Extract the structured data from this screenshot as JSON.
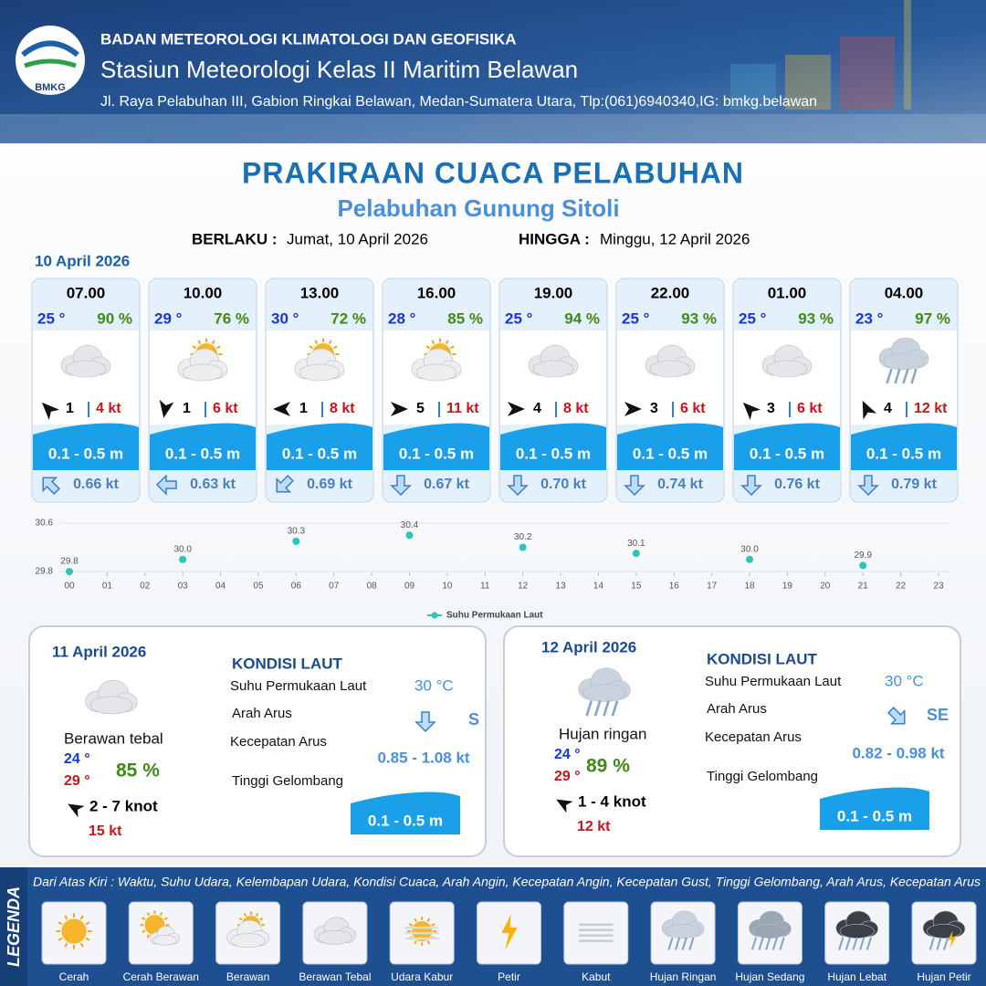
{
  "header": {
    "logo": "BMKG",
    "org": "BADAN METEOROLOGI KLIMATOLOGI DAN GEOFISIKA",
    "station": "Stasiun Meteorologi Kelas II Maritim Belawan",
    "address": "Jl. Raya Pelabuhan III, Gabion Ringkai Belawan, Medan-Sumatera Utara, Tlp:(061)6940340,IG: bmkg.belawan"
  },
  "title": "PRAKIRAAN CUACA PELABUHAN",
  "subtitle": "Pelabuhan Gunung Sitoli",
  "validity": {
    "from_label": "BERLAKU :",
    "from": "Jumat, 10 April 2026",
    "to_label": "HINGGA :",
    "to": "Minggu, 12 April 2026"
  },
  "forecast": {
    "date": "10 April 2026",
    "slots": [
      {
        "time": "07.00",
        "temp": "25 °",
        "humidity": "90 %",
        "wind": "1",
        "gust": "4 kt",
        "wave": "0.1 - 0.5 m",
        "current": "0.66 kt"
      },
      {
        "time": "10.00",
        "temp": "29 °",
        "humidity": "76 %",
        "wind": "1",
        "gust": "6 kt",
        "wave": "0.1 - 0.5 m",
        "current": "0.63 kt"
      },
      {
        "time": "13.00",
        "temp": "30 °",
        "humidity": "72 %",
        "wind": "1",
        "gust": "8 kt",
        "wave": "0.1 - 0.5 m",
        "current": "0.69 kt"
      },
      {
        "time": "16.00",
        "temp": "28 °",
        "humidity": "85 %",
        "wind": "5",
        "gust": "11 kt",
        "wave": "0.1 - 0.5 m",
        "current": "0.67 kt"
      },
      {
        "time": "19.00",
        "temp": "25 °",
        "humidity": "94 %",
        "wind": "4",
        "gust": "8 kt",
        "wave": "0.1 - 0.5 m",
        "current": "0.70 kt"
      },
      {
        "time": "22.00",
        "temp": "25 °",
        "humidity": "93 %",
        "wind": "3",
        "gust": "6 kt",
        "wave": "0.1 - 0.5 m",
        "current": "0.74 kt"
      },
      {
        "time": "01.00",
        "temp": "25 °",
        "humidity": "93 %",
        "wind": "3",
        "gust": "6 kt",
        "wave": "0.1 - 0.5 m",
        "current": "0.76 kt"
      },
      {
        "time": "04.00",
        "temp": "23 °",
        "humidity": "97 %",
        "wind": "4",
        "gust": "12 kt",
        "wave": "0.1 - 0.5 m",
        "current": "0.79 kt"
      }
    ]
  },
  "chart_data": {
    "type": "scatter",
    "x": [
      0,
      3,
      6,
      9,
      12,
      15,
      18,
      21
    ],
    "series": [
      {
        "name": "Suhu Permukaan Laut",
        "color": "#2ec4b6",
        "values": [
          29.8,
          30.0,
          30.3,
          30.4,
          30.2,
          30.1,
          30.0,
          29.9
        ],
        "value_labels": [
          "29.8",
          "30.0",
          "30.3",
          "30.4",
          "30.2",
          "30.1",
          "30.0",
          "29.9"
        ]
      }
    ],
    "xlim": [
      0,
      23
    ],
    "xticks": [
      {
        "value": 0,
        "label": "00"
      },
      {
        "value": 1,
        "label": "01"
      },
      {
        "value": 2,
        "label": "02"
      },
      {
        "value": 3,
        "label": "03"
      },
      {
        "value": 4,
        "label": "04"
      },
      {
        "value": 5,
        "label": "05"
      },
      {
        "value": 6,
        "label": "06"
      },
      {
        "value": 7,
        "label": "07"
      },
      {
        "value": 8,
        "label": "08"
      },
      {
        "value": 9,
        "label": "09"
      },
      10,
      11,
      12,
      13,
      14,
      15,
      16,
      17,
      18,
      19,
      20,
      21,
      22,
      23
    ],
    "ylim": [
      29.8,
      30.6
    ],
    "yticks": [
      29.8,
      30.6
    ],
    "grid": true
  },
  "days": [
    {
      "date": "11 April 2026",
      "condition": "Berawan tebal",
      "tmin": "24 °",
      "tmax": "29 °",
      "humidity": "85 %",
      "wind": "2  - 7 knot",
      "gust": "15 kt",
      "sea_title": "KONDISI LAUT",
      "sst_label": "Suhu Permukaan Laut",
      "sst": "30 °C",
      "dir_label": "Arah Arus",
      "dir": "S",
      "speed_label": "Kecepatan Arus",
      "speed": "0.85 - 1.08 kt",
      "wave_label": "Tinggi Gelombang",
      "wave": "0.1 - 0.5 m"
    },
    {
      "date": "12 April 2026",
      "condition": "Hujan ringan",
      "tmin": "24 °",
      "tmax": "29 °",
      "humidity": "89 %",
      "wind": "1  - 4 knot",
      "gust": "12 kt",
      "sea_title": "KONDISI LAUT",
      "sst_label": "Suhu Permukaan Laut",
      "sst": "30 °C",
      "dir_label": "Arah Arus",
      "dir": "SE",
      "speed_label": "Kecepatan Arus",
      "speed": "0.82  - 0.98 kt",
      "wave_label": "Tinggi Gelombang",
      "wave": "0.1 - 0.5 m"
    }
  ],
  "legend": {
    "title": "LEGENDA",
    "description": "Dari Atas Kiri : Waktu, Suhu Udara, Kelembapan Udara, Kondisi Cuaca, Arah Angin, Kecepatan Angin, Kecepatan Gust, Tinggi Gelombang, Arah Arus, Kecepatan Arus",
    "items": [
      "Cerah",
      "Cerah Berawan",
      "Berawan",
      "Berawan Tebal",
      "Udara Kabur",
      "Petir",
      "Kabut",
      "Hujan Ringan",
      "Hujan Sedang",
      "Hujan Lebat",
      "Hujan Petir"
    ]
  }
}
